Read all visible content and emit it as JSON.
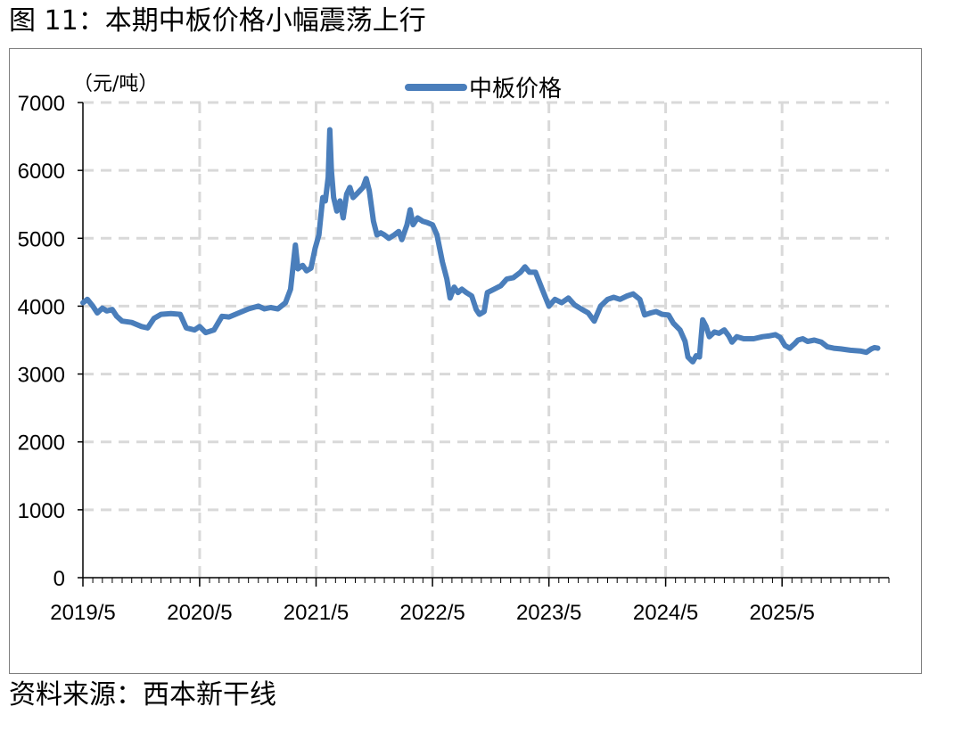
{
  "figure_title": "图 11：本期中板价格小幅震荡上行",
  "source": "资料来源：西本新干线",
  "colors": {
    "series": "#4a7ebb",
    "grid": "#d9d9d9",
    "axis": "#000000",
    "frame": "#7f7f7f"
  },
  "chart_data": {
    "type": "line",
    "title": "",
    "ylabel": "（元/吨）",
    "xlabel": "",
    "ylim": [
      0,
      7000
    ],
    "yticks": [
      0,
      1000,
      2000,
      3000,
      4000,
      5000,
      6000,
      7000
    ],
    "xlim": [
      "2019-05",
      "2026-04"
    ],
    "xticks": [
      "2019/5",
      "2020/5",
      "2021/5",
      "2022/5",
      "2023/5",
      "2024/5",
      "2025/5"
    ],
    "grid": true,
    "legend_position": "top-center",
    "series": [
      {
        "name": "中板价格",
        "points": [
          [
            "2019-05-01",
            4050
          ],
          [
            "2019-05-15",
            4100
          ],
          [
            "2019-06-01",
            4000
          ],
          [
            "2019-06-15",
            3900
          ],
          [
            "2019-07-01",
            3970
          ],
          [
            "2019-07-15",
            3930
          ],
          [
            "2019-08-01",
            3950
          ],
          [
            "2019-08-15",
            3850
          ],
          [
            "2019-09-01",
            3780
          ],
          [
            "2019-10-01",
            3760
          ],
          [
            "2019-11-01",
            3700
          ],
          [
            "2019-11-20",
            3680
          ],
          [
            "2019-12-10",
            3820
          ],
          [
            "2020-01-01",
            3880
          ],
          [
            "2020-02-01",
            3890
          ],
          [
            "2020-03-01",
            3880
          ],
          [
            "2020-03-20",
            3680
          ],
          [
            "2020-04-15",
            3650
          ],
          [
            "2020-05-01",
            3700
          ],
          [
            "2020-05-20",
            3610
          ],
          [
            "2020-06-15",
            3650
          ],
          [
            "2020-07-10",
            3850
          ],
          [
            "2020-08-01",
            3840
          ],
          [
            "2020-09-01",
            3900
          ],
          [
            "2020-10-01",
            3960
          ],
          [
            "2020-11-01",
            4000
          ],
          [
            "2020-11-20",
            3960
          ],
          [
            "2020-12-10",
            3980
          ],
          [
            "2021-01-01",
            3960
          ],
          [
            "2021-01-25",
            4050
          ],
          [
            "2021-02-10",
            4250
          ],
          [
            "2021-02-25",
            4900
          ],
          [
            "2021-03-05",
            4550
          ],
          [
            "2021-03-20",
            4600
          ],
          [
            "2021-04-01",
            4520
          ],
          [
            "2021-04-15",
            4560
          ],
          [
            "2021-04-28",
            4850
          ],
          [
            "2021-05-10",
            5050
          ],
          [
            "2021-05-22",
            5600
          ],
          [
            "2021-05-30",
            5550
          ],
          [
            "2021-06-08",
            5900
          ],
          [
            "2021-06-13",
            6600
          ],
          [
            "2021-06-18",
            6000
          ],
          [
            "2021-06-25",
            5600
          ],
          [
            "2021-07-05",
            5400
          ],
          [
            "2021-07-15",
            5550
          ],
          [
            "2021-07-25",
            5300
          ],
          [
            "2021-08-05",
            5650
          ],
          [
            "2021-08-15",
            5750
          ],
          [
            "2021-08-25",
            5600
          ],
          [
            "2021-09-05",
            5650
          ],
          [
            "2021-09-15",
            5700
          ],
          [
            "2021-09-25",
            5750
          ],
          [
            "2021-10-05",
            5880
          ],
          [
            "2021-10-15",
            5700
          ],
          [
            "2021-10-28",
            5250
          ],
          [
            "2021-11-08",
            5050
          ],
          [
            "2021-11-20",
            5080
          ],
          [
            "2021-12-01",
            5050
          ],
          [
            "2021-12-15",
            5000
          ],
          [
            "2022-01-01",
            5050
          ],
          [
            "2022-01-15",
            5100
          ],
          [
            "2022-01-25",
            4980
          ],
          [
            "2022-02-10",
            5200
          ],
          [
            "2022-02-20",
            5420
          ],
          [
            "2022-03-01",
            5200
          ],
          [
            "2022-03-15",
            5300
          ],
          [
            "2022-04-01",
            5250
          ],
          [
            "2022-04-15",
            5230
          ],
          [
            "2022-05-01",
            5200
          ],
          [
            "2022-05-15",
            5050
          ],
          [
            "2022-06-01",
            4650
          ],
          [
            "2022-06-15",
            4400
          ],
          [
            "2022-06-25",
            4120
          ],
          [
            "2022-07-08",
            4280
          ],
          [
            "2022-07-20",
            4200
          ],
          [
            "2022-08-01",
            4250
          ],
          [
            "2022-08-15",
            4200
          ],
          [
            "2022-09-01",
            4150
          ],
          [
            "2022-09-15",
            3950
          ],
          [
            "2022-09-25",
            3880
          ],
          [
            "2022-10-10",
            3920
          ],
          [
            "2022-10-20",
            4200
          ],
          [
            "2022-11-10",
            4250
          ],
          [
            "2022-12-01",
            4300
          ],
          [
            "2022-12-20",
            4400
          ],
          [
            "2023-01-10",
            4420
          ],
          [
            "2023-02-01",
            4500
          ],
          [
            "2023-02-15",
            4580
          ],
          [
            "2023-03-01",
            4500
          ],
          [
            "2023-03-20",
            4500
          ],
          [
            "2023-04-10",
            4250
          ],
          [
            "2023-05-01",
            4000
          ],
          [
            "2023-05-20",
            4100
          ],
          [
            "2023-06-10",
            4050
          ],
          [
            "2023-07-01",
            4120
          ],
          [
            "2023-07-20",
            4020
          ],
          [
            "2023-08-10",
            3960
          ],
          [
            "2023-09-01",
            3900
          ],
          [
            "2023-09-20",
            3780
          ],
          [
            "2023-10-10",
            4000
          ],
          [
            "2023-11-01",
            4100
          ],
          [
            "2023-11-20",
            4130
          ],
          [
            "2023-12-10",
            4100
          ],
          [
            "2024-01-01",
            4150
          ],
          [
            "2024-01-20",
            4180
          ],
          [
            "2024-02-10",
            4100
          ],
          [
            "2024-02-25",
            3870
          ],
          [
            "2024-03-15",
            3900
          ],
          [
            "2024-04-01",
            3920
          ],
          [
            "2024-04-20",
            3880
          ],
          [
            "2024-05-10",
            3870
          ],
          [
            "2024-05-25",
            3750
          ],
          [
            "2024-06-15",
            3650
          ],
          [
            "2024-07-01",
            3480
          ],
          [
            "2024-07-10",
            3250
          ],
          [
            "2024-07-25",
            3180
          ],
          [
            "2024-08-05",
            3270
          ],
          [
            "2024-08-15",
            3250
          ],
          [
            "2024-08-25",
            3800
          ],
          [
            "2024-09-05",
            3700
          ],
          [
            "2024-09-15",
            3550
          ],
          [
            "2024-10-01",
            3620
          ],
          [
            "2024-10-15",
            3600
          ],
          [
            "2024-11-01",
            3650
          ],
          [
            "2024-11-15",
            3560
          ],
          [
            "2024-11-25",
            3470
          ],
          [
            "2024-12-10",
            3550
          ],
          [
            "2025-01-01",
            3520
          ],
          [
            "2025-02-01",
            3520
          ],
          [
            "2025-03-01",
            3550
          ],
          [
            "2025-03-20",
            3560
          ],
          [
            "2025-04-10",
            3580
          ],
          [
            "2025-04-25",
            3540
          ],
          [
            "2025-05-10",
            3420
          ],
          [
            "2025-05-25",
            3380
          ],
          [
            "2025-06-10",
            3450
          ],
          [
            "2025-06-20",
            3500
          ],
          [
            "2025-07-05",
            3520
          ],
          [
            "2025-07-20",
            3480
          ],
          [
            "2025-08-10",
            3500
          ],
          [
            "2025-09-01",
            3470
          ],
          [
            "2025-09-20",
            3400
          ],
          [
            "2025-10-10",
            3380
          ],
          [
            "2025-11-01",
            3370
          ],
          [
            "2025-12-01",
            3350
          ],
          [
            "2026-01-01",
            3340
          ],
          [
            "2026-01-20",
            3320
          ],
          [
            "2026-02-05",
            3370
          ],
          [
            "2026-02-15",
            3390
          ],
          [
            "2026-02-25",
            3380
          ]
        ]
      }
    ]
  }
}
